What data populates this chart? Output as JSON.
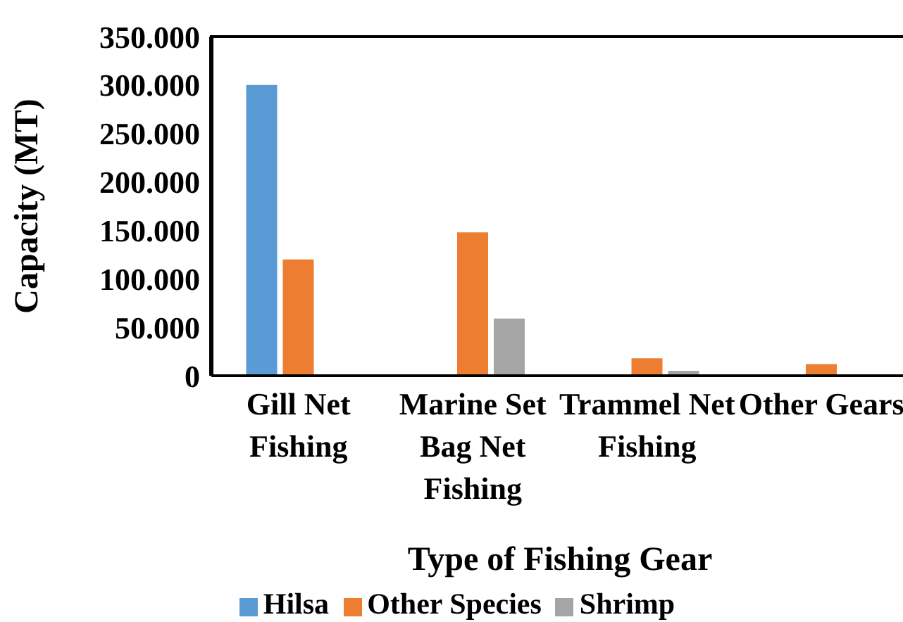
{
  "chart_data": {
    "type": "bar",
    "xlabel": "Type of Fishing Gear",
    "ylabel": "Capacity (MT)",
    "categories": [
      "Gill Net Fishing",
      "Marine Set Bag Net Fishing",
      "Trammel Net Fishing",
      "Other Gears"
    ],
    "series": [
      {
        "name": "Hilsa",
        "color": "#5b9bd5",
        "values": [
          300000,
          0,
          0,
          0
        ]
      },
      {
        "name": "Other Species",
        "color": "#ed7d31",
        "values": [
          120000,
          148000,
          18000,
          12000
        ]
      },
      {
        "name": "Shrimp",
        "color": "#a5a5a5",
        "values": [
          0,
          59000,
          5000,
          0
        ]
      }
    ],
    "ylim": [
      0,
      350000
    ],
    "yticks": [
      0,
      {
        "value": 50000,
        "label": "50.000"
      },
      {
        "value": 100000,
        "label": "100.000"
      },
      {
        "value": 150000,
        "label": "150.000"
      },
      {
        "value": 200000,
        "label": "200.000"
      },
      {
        "value": 250000,
        "label": "250.000"
      },
      {
        "value": 300000,
        "label": "300.000"
      },
      {
        "value": 350000,
        "label": "350.000"
      }
    ],
    "grid": false,
    "legend": "bottom"
  }
}
